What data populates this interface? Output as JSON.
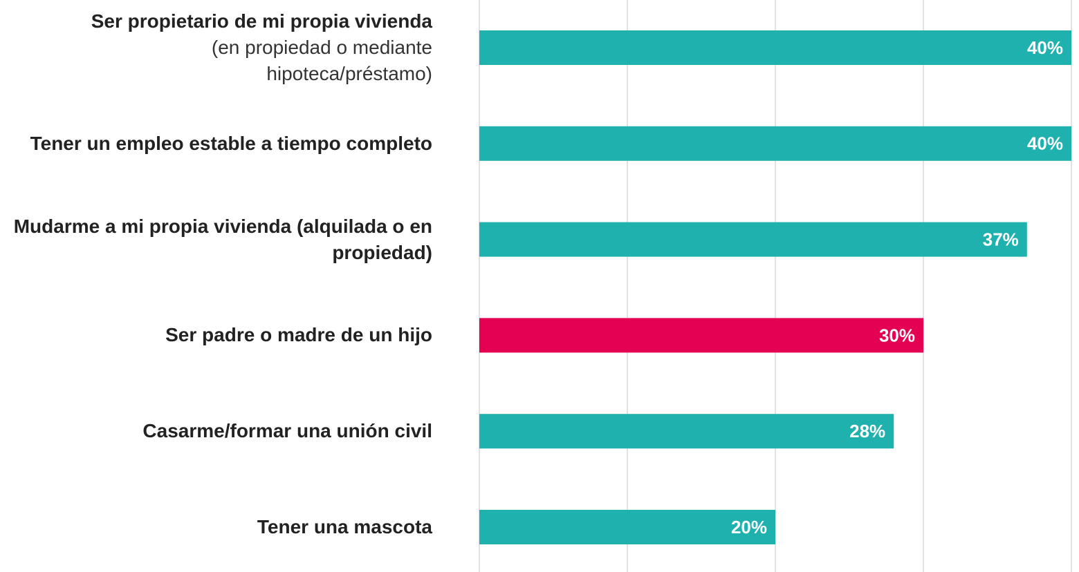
{
  "chart_data": {
    "type": "bar",
    "orientation": "horizontal",
    "categories": [
      "Ser propietario de mi propia vivienda",
      "Tener un empleo estable a tiempo completo",
      "Mudarme a mi propia vivienda (alquilada o en propiedad)",
      "Ser padre o madre de un hijo",
      "Casarme/formar una unión civil",
      "Tener una mascota"
    ],
    "category_notes": [
      "(en propiedad o mediante hipoteca/préstamo)",
      null,
      null,
      null,
      null,
      null
    ],
    "values": [
      40,
      40,
      37,
      30,
      28,
      20
    ],
    "value_labels": [
      "40%",
      "40%",
      "37%",
      "30%",
      "28%",
      "20%"
    ],
    "colors": [
      "#1fb1ae",
      "#1fb1ae",
      "#1fb1ae",
      "#e40052",
      "#1fb1ae",
      "#1fb1ae"
    ],
    "xlim": [
      0,
      40
    ],
    "xticks": [
      0,
      10,
      20,
      30,
      40
    ],
    "grid": true
  }
}
